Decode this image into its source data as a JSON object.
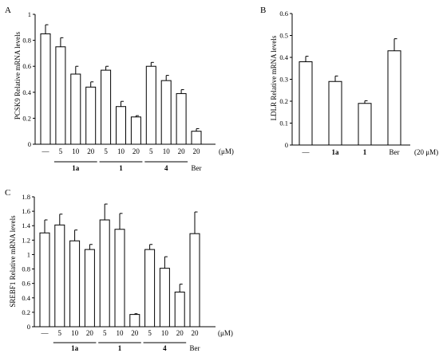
{
  "chart_data": [
    {
      "panel": "A",
      "type": "bar",
      "ylabel": "PCSK9 Relative mRNA levels",
      "ylim": [
        0,
        1.0
      ],
      "yticks": [
        "0",
        "0.2",
        "0.4",
        "0.6",
        "0.8",
        "1"
      ],
      "categories": [
        "—",
        "5",
        "10",
        "20",
        "5",
        "10",
        "20",
        "5",
        "10",
        "20",
        "20"
      ],
      "values": [
        0.85,
        0.75,
        0.54,
        0.44,
        0.57,
        0.29,
        0.21,
        0.6,
        0.49,
        0.39,
        0.1
      ],
      "errors": [
        0.07,
        0.07,
        0.06,
        0.04,
        0.03,
        0.04,
        0.01,
        0.03,
        0.04,
        0.03,
        0.02
      ],
      "unit": "(μM)",
      "groups": [
        {
          "label": "1a",
          "start": 1,
          "end": 3
        },
        {
          "label": "1",
          "start": 4,
          "end": 6
        },
        {
          "label": "4",
          "start": 7,
          "end": 9
        }
      ],
      "extra_label": "Ber"
    },
    {
      "panel": "B",
      "type": "bar",
      "ylabel": "LDLR Relative mRNA levels",
      "ylim": [
        0,
        0.6
      ],
      "yticks": [
        "0",
        "0.1",
        "0.2",
        "0.3",
        "0.4",
        "0.5",
        "0.6"
      ],
      "categories": [
        "—",
        "1a",
        "1",
        "Ber"
      ],
      "values": [
        0.38,
        0.29,
        0.19,
        0.43
      ],
      "errors": [
        0.025,
        0.025,
        0.012,
        0.055
      ],
      "unit": "(20 μM)"
    },
    {
      "panel": "C",
      "type": "bar",
      "ylabel": "SREBF1 Relative mRNA levels",
      "ylim": [
        0,
        1.8
      ],
      "yticks": [
        "0",
        "0.2",
        "0.4",
        "0.6",
        "0.8",
        "1",
        "1.2",
        "1.4",
        "1.6",
        "1.8"
      ],
      "categories": [
        "—",
        "5",
        "10",
        "20",
        "5",
        "10",
        "20",
        "5",
        "10",
        "20",
        "20"
      ],
      "values": [
        1.3,
        1.41,
        1.19,
        1.07,
        1.48,
        1.35,
        0.17,
        1.07,
        0.81,
        0.48,
        1.29
      ],
      "errors": [
        0.18,
        0.15,
        0.15,
        0.07,
        0.22,
        0.22,
        0.01,
        0.07,
        0.16,
        0.11,
        0.3
      ],
      "unit": "(μM)",
      "groups": [
        {
          "label": "1a",
          "start": 1,
          "end": 3
        },
        {
          "label": "1",
          "start": 4,
          "end": 6
        },
        {
          "label": "4",
          "start": 7,
          "end": 9
        }
      ],
      "extra_label": "Ber"
    }
  ]
}
